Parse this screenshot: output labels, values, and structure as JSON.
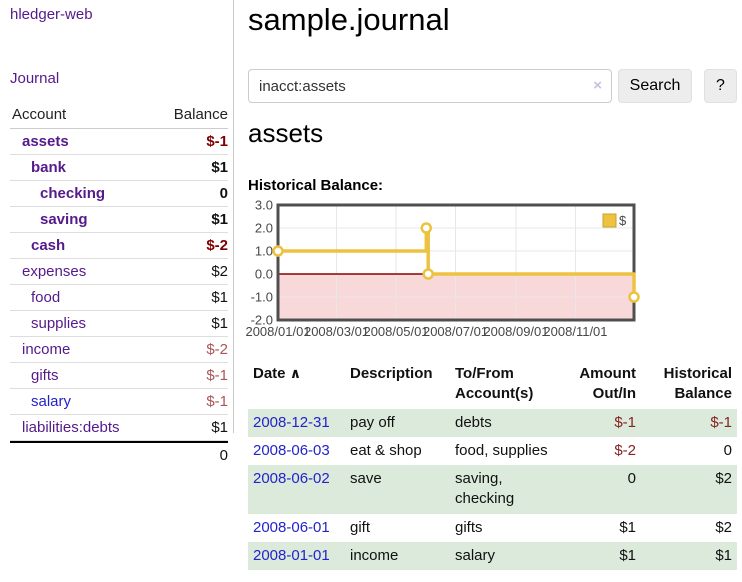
{
  "app_title": "hledger-web",
  "sidebar": {
    "journal_link": "Journal",
    "account_header": "Account",
    "balance_header": "Balance",
    "accounts": [
      {
        "account": "assets",
        "balance": "$-1",
        "level": 1,
        "bold": true,
        "account_color": "purple",
        "balance_color": "darkred"
      },
      {
        "account": "bank",
        "balance": "$1",
        "level": 2,
        "bold": true,
        "account_color": "purple",
        "balance_color": "black"
      },
      {
        "account": "checking",
        "balance": "0",
        "level": 3,
        "bold": true,
        "account_color": "purple",
        "balance_color": "black"
      },
      {
        "account": "saving",
        "balance": "$1",
        "level": 3,
        "bold": true,
        "account_color": "purple",
        "balance_color": "black"
      },
      {
        "account": "cash",
        "balance": "$-2",
        "level": 2,
        "bold": true,
        "account_color": "purple",
        "balance_color": "darkred"
      },
      {
        "account": "expenses",
        "balance": "$2",
        "level": 1,
        "bold": false,
        "account_color": "purple",
        "balance_color": "black"
      },
      {
        "account": "food",
        "balance": "$1",
        "level": 2,
        "bold": false,
        "account_color": "purple",
        "balance_color": "black"
      },
      {
        "account": "supplies",
        "balance": "$1",
        "level": 2,
        "bold": false,
        "account_color": "purple",
        "balance_color": "black"
      },
      {
        "account": "income",
        "balance": "$-2",
        "level": 1,
        "bold": false,
        "account_color": "purple",
        "balance_color": "rosy"
      },
      {
        "account": "gifts",
        "balance": "$-1",
        "level": 2,
        "bold": false,
        "account_color": "purple",
        "balance_color": "rosy"
      },
      {
        "account": "salary",
        "balance": "$-1",
        "level": 2,
        "bold": false,
        "account_color": "blue",
        "balance_color": "rosy"
      },
      {
        "account": "liabilities:debts",
        "balance": "$1",
        "level": 1,
        "bold": false,
        "account_color": "purple",
        "balance_color": "black"
      }
    ],
    "total": "0"
  },
  "main": {
    "title": "sample.journal",
    "search": {
      "value": "inacct:assets",
      "clear_icon": "×",
      "search_button": "Search",
      "help_button": "?"
    },
    "account_heading": "assets",
    "section_label": "Historical Balance:"
  },
  "chart_data": {
    "type": "line",
    "step": true,
    "title": "Historical Balance",
    "x_start": "2008-01-01",
    "x_end": "2008-12-31",
    "xticks": [
      "2008/01/01",
      "2008/03/01",
      "2008/05/01",
      "2008/07/01",
      "2008/09/01",
      "2008/11/01"
    ],
    "yticks": [
      3.0,
      2.0,
      1.0,
      0.0,
      -1.0,
      -2.0
    ],
    "ylim": [
      -2,
      3
    ],
    "legend_position": "top-right",
    "series": [
      {
        "name": "$",
        "color": "#EDC240",
        "points": [
          {
            "date": "2008-01-01",
            "value": 1
          },
          {
            "date": "2008-06-01",
            "value": 2
          },
          {
            "date": "2008-06-03",
            "value": 0
          },
          {
            "date": "2008-12-31",
            "value": -1
          }
        ]
      }
    ],
    "colors": {
      "negative_fill": "#F8D8D8",
      "zero_line": "#8B0000",
      "grid": "#E7E7E7",
      "border": "#4F4F4F",
      "legend_swatch_border": "#C9A32E"
    }
  },
  "register": {
    "headers": {
      "date": "Date",
      "sort_icon": "∧",
      "description": "Description",
      "accounts": "To/From Account(s)",
      "amount": "Amount Out/In",
      "balance": "Historical Balance"
    },
    "rows": [
      {
        "date": "2008-12-31",
        "description": "pay off",
        "accounts": "debts",
        "amount": "$-1",
        "balance": "$-1",
        "amount_color": "red",
        "balance_color": "red"
      },
      {
        "date": "2008-06-03",
        "description": "eat & shop",
        "accounts": "food, supplies",
        "amount": "$-2",
        "balance": "0",
        "amount_color": "red",
        "balance_color": "black"
      },
      {
        "date": "2008-06-02",
        "description": "save",
        "accounts": "saving, checking",
        "amount": "0",
        "balance": "$2",
        "amount_color": "black",
        "balance_color": "black"
      },
      {
        "date": "2008-06-01",
        "description": "gift",
        "accounts": "gifts",
        "amount": "$1",
        "balance": "$2",
        "amount_color": "black",
        "balance_color": "black"
      },
      {
        "date": "2008-01-01",
        "description": "income",
        "accounts": "salary",
        "amount": "$1",
        "balance": "$1",
        "amount_color": "black",
        "balance_color": "black"
      }
    ]
  },
  "colors": {
    "purple": "#551A8B",
    "blue": "#2323CC",
    "dark_red": "#7F0000",
    "rosy_red": "#AA5555",
    "table_red": "#882222",
    "row_green": "#DBEADA",
    "accent_gold": "#EDC240"
  }
}
